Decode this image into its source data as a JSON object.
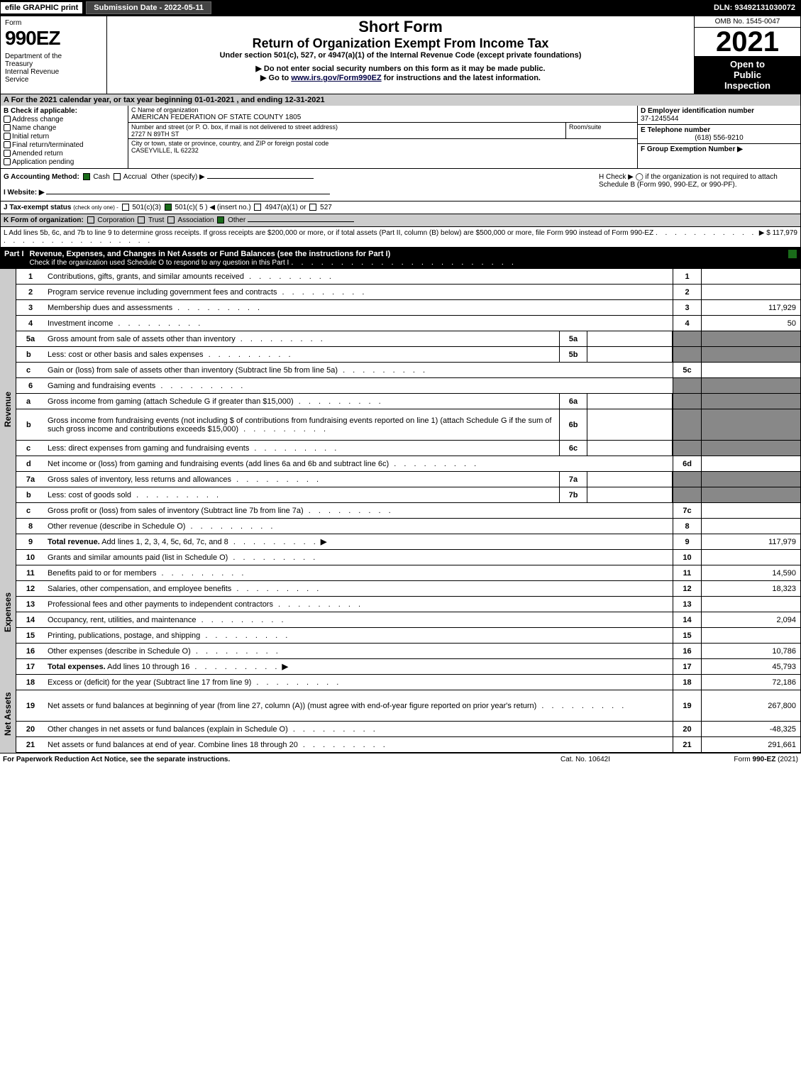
{
  "colors": {
    "black": "#000000",
    "white": "#ffffff",
    "gray_bg": "#cccccc",
    "shaded": "#888888",
    "green_check": "#1a6b1a",
    "link": "#000044"
  },
  "topbar": {
    "efile": "efile GRAPHIC print",
    "submission": "Submission Date - 2022-05-11",
    "dln": "DLN: 93492131030072"
  },
  "header": {
    "form_label": "Form",
    "form_number": "990EZ",
    "department": "Department of the Treasury\nInternal Revenue Service",
    "short_form": "Short Form",
    "title": "Return of Organization Exempt From Income Tax",
    "subtitle": "Under section 501(c), 527, or 4947(a)(1) of the Internal Revenue Code (except private foundations)",
    "do_not": "▶ Do not enter social security numbers on this form as it may be made public.",
    "goto_prefix": "▶ Go to ",
    "goto_link": "www.irs.gov/Form990EZ",
    "goto_suffix": " for instructions and the latest information.",
    "omb": "OMB No. 1545-0047",
    "year": "2021",
    "open_to": "Open to Public Inspection"
  },
  "rowA": "A  For the 2021 calendar year, or tax year beginning 01-01-2021 , and ending 12-31-2021",
  "sectionB": {
    "title": "B  Check if applicable:",
    "items": [
      "Address change",
      "Name change",
      "Initial return",
      "Final return/terminated",
      "Amended return",
      "Application pending"
    ]
  },
  "sectionC": {
    "name_label": "C Name of organization",
    "name": "AMERICAN FEDERATION OF STATE COUNTY 1805",
    "street_label": "Number and street (or P. O. box, if mail is not delivered to street address)",
    "street": "2727 N 89TH ST",
    "room_label": "Room/suite",
    "room": "",
    "city_label": "City or town, state or province, country, and ZIP or foreign postal code",
    "city": "CASEYVILLE, IL  62232"
  },
  "sectionDE": {
    "d_label": "D Employer identification number",
    "d_value": "37-1245544",
    "e_label": "E Telephone number",
    "e_value": "(618) 556-9210",
    "f_label": "F Group Exemption Number  ▶",
    "f_value": ""
  },
  "rowG": {
    "label": "G Accounting Method:",
    "cash": "Cash",
    "accrual": "Accrual",
    "other": "Other (specify) ▶",
    "cash_checked": true
  },
  "rowH": {
    "text": "H  Check ▶  ◯  if the organization is not required to attach Schedule B (Form 990, 990-EZ, or 990-PF)."
  },
  "rowI": {
    "label": "I Website: ▶"
  },
  "rowJ": {
    "label": "J Tax-exempt status",
    "sub": "(check only one) -",
    "opt1": "501(c)(3)",
    "opt2": "501(c)( 5 ) ◀ (insert no.)",
    "opt3": "4947(a)(1) or",
    "opt4": "527",
    "opt2_checked": true
  },
  "rowK": {
    "label": "K Form of organization:",
    "opts": [
      "Corporation",
      "Trust",
      "Association",
      "Other"
    ],
    "checked_index": 3
  },
  "rowL": {
    "text": "L Add lines 5b, 6c, and 7b to line 9 to determine gross receipts. If gross receipts are $200,000 or more, or if total assets (Part II, column (B) below) are $500,000 or more, file Form 990 instead of Form 990-EZ",
    "amount": "▶ $ 117,979"
  },
  "partI": {
    "label": "Part I",
    "title": "Revenue, Expenses, and Changes in Net Assets or Fund Balances (see the instructions for Part I)",
    "check_text": "Check if the organization used Schedule O to respond to any question in this Part I",
    "checked": true
  },
  "side_labels": {
    "revenue": "Revenue",
    "expenses": "Expenses",
    "net_assets": "Net Assets"
  },
  "lines": [
    {
      "num": "1",
      "desc": "Contributions, gifts, grants, and similar amounts received",
      "rnum": "1",
      "val": ""
    },
    {
      "num": "2",
      "desc": "Program service revenue including government fees and contracts",
      "rnum": "2",
      "val": ""
    },
    {
      "num": "3",
      "desc": "Membership dues and assessments",
      "rnum": "3",
      "val": "117,929"
    },
    {
      "num": "4",
      "desc": "Investment income",
      "rnum": "4",
      "val": "50"
    },
    {
      "num": "5a",
      "desc": "Gross amount from sale of assets other than inventory",
      "inline_num": "5a",
      "inline_val": "",
      "shaded": true
    },
    {
      "num": "b",
      "desc": "Less: cost or other basis and sales expenses",
      "inline_num": "5b",
      "inline_val": "",
      "shaded": true
    },
    {
      "num": "c",
      "desc": "Gain or (loss) from sale of assets other than inventory (Subtract line 5b from line 5a)",
      "rnum": "5c",
      "val": ""
    },
    {
      "num": "6",
      "desc": "Gaming and fundraising events",
      "shaded": true,
      "no_right": true
    },
    {
      "num": "a",
      "desc": "Gross income from gaming (attach Schedule G if greater than $15,000)",
      "inline_num": "6a",
      "inline_val": "",
      "shaded": true
    },
    {
      "num": "b",
      "desc": "Gross income from fundraising events (not including $               of contributions from fundraising events reported on line 1) (attach Schedule G if the sum of such gross income and contributions exceeds $15,000)",
      "inline_num": "6b",
      "inline_val": "",
      "shaded": true,
      "tall": true
    },
    {
      "num": "c",
      "desc": "Less: direct expenses from gaming and fundraising events",
      "inline_num": "6c",
      "inline_val": "",
      "shaded": true
    },
    {
      "num": "d",
      "desc": "Net income or (loss) from gaming and fundraising events (add lines 6a and 6b and subtract line 6c)",
      "rnum": "6d",
      "val": ""
    },
    {
      "num": "7a",
      "desc": "Gross sales of inventory, less returns and allowances",
      "inline_num": "7a",
      "inline_val": "",
      "shaded": true
    },
    {
      "num": "b",
      "desc": "Less: cost of goods sold",
      "inline_num": "7b",
      "inline_val": "",
      "shaded": true
    },
    {
      "num": "c",
      "desc": "Gross profit or (loss) from sales of inventory (Subtract line 7b from line 7a)",
      "rnum": "7c",
      "val": ""
    },
    {
      "num": "8",
      "desc": "Other revenue (describe in Schedule O)",
      "rnum": "8",
      "val": ""
    },
    {
      "num": "9",
      "desc": "Total revenue. Add lines 1, 2, 3, 4, 5c, 6d, 7c, and 8",
      "rnum": "9",
      "val": "117,979",
      "bold": true,
      "arrow": true
    }
  ],
  "expense_lines": [
    {
      "num": "10",
      "desc": "Grants and similar amounts paid (list in Schedule O)",
      "rnum": "10",
      "val": ""
    },
    {
      "num": "11",
      "desc": "Benefits paid to or for members",
      "rnum": "11",
      "val": "14,590"
    },
    {
      "num": "12",
      "desc": "Salaries, other compensation, and employee benefits",
      "rnum": "12",
      "val": "18,323"
    },
    {
      "num": "13",
      "desc": "Professional fees and other payments to independent contractors",
      "rnum": "13",
      "val": ""
    },
    {
      "num": "14",
      "desc": "Occupancy, rent, utilities, and maintenance",
      "rnum": "14",
      "val": "2,094"
    },
    {
      "num": "15",
      "desc": "Printing, publications, postage, and shipping",
      "rnum": "15",
      "val": ""
    },
    {
      "num": "16",
      "desc": "Other expenses (describe in Schedule O)",
      "rnum": "16",
      "val": "10,786"
    },
    {
      "num": "17",
      "desc": "Total expenses. Add lines 10 through 16",
      "rnum": "17",
      "val": "45,793",
      "bold": true,
      "arrow": true
    }
  ],
  "net_lines": [
    {
      "num": "18",
      "desc": "Excess or (deficit) for the year (Subtract line 17 from line 9)",
      "rnum": "18",
      "val": "72,186"
    },
    {
      "num": "19",
      "desc": "Net assets or fund balances at beginning of year (from line 27, column (A)) (must agree with end-of-year figure reported on prior year's return)",
      "rnum": "19",
      "val": "267,800",
      "tall": true
    },
    {
      "num": "20",
      "desc": "Other changes in net assets or fund balances (explain in Schedule O)",
      "rnum": "20",
      "val": "-48,325"
    },
    {
      "num": "21",
      "desc": "Net assets or fund balances at end of year. Combine lines 18 through 20",
      "rnum": "21",
      "val": "291,661"
    }
  ],
  "footer": {
    "left": "For Paperwork Reduction Act Notice, see the separate instructions.",
    "mid": "Cat. No. 10642I",
    "right": "Form 990-EZ (2021)"
  }
}
